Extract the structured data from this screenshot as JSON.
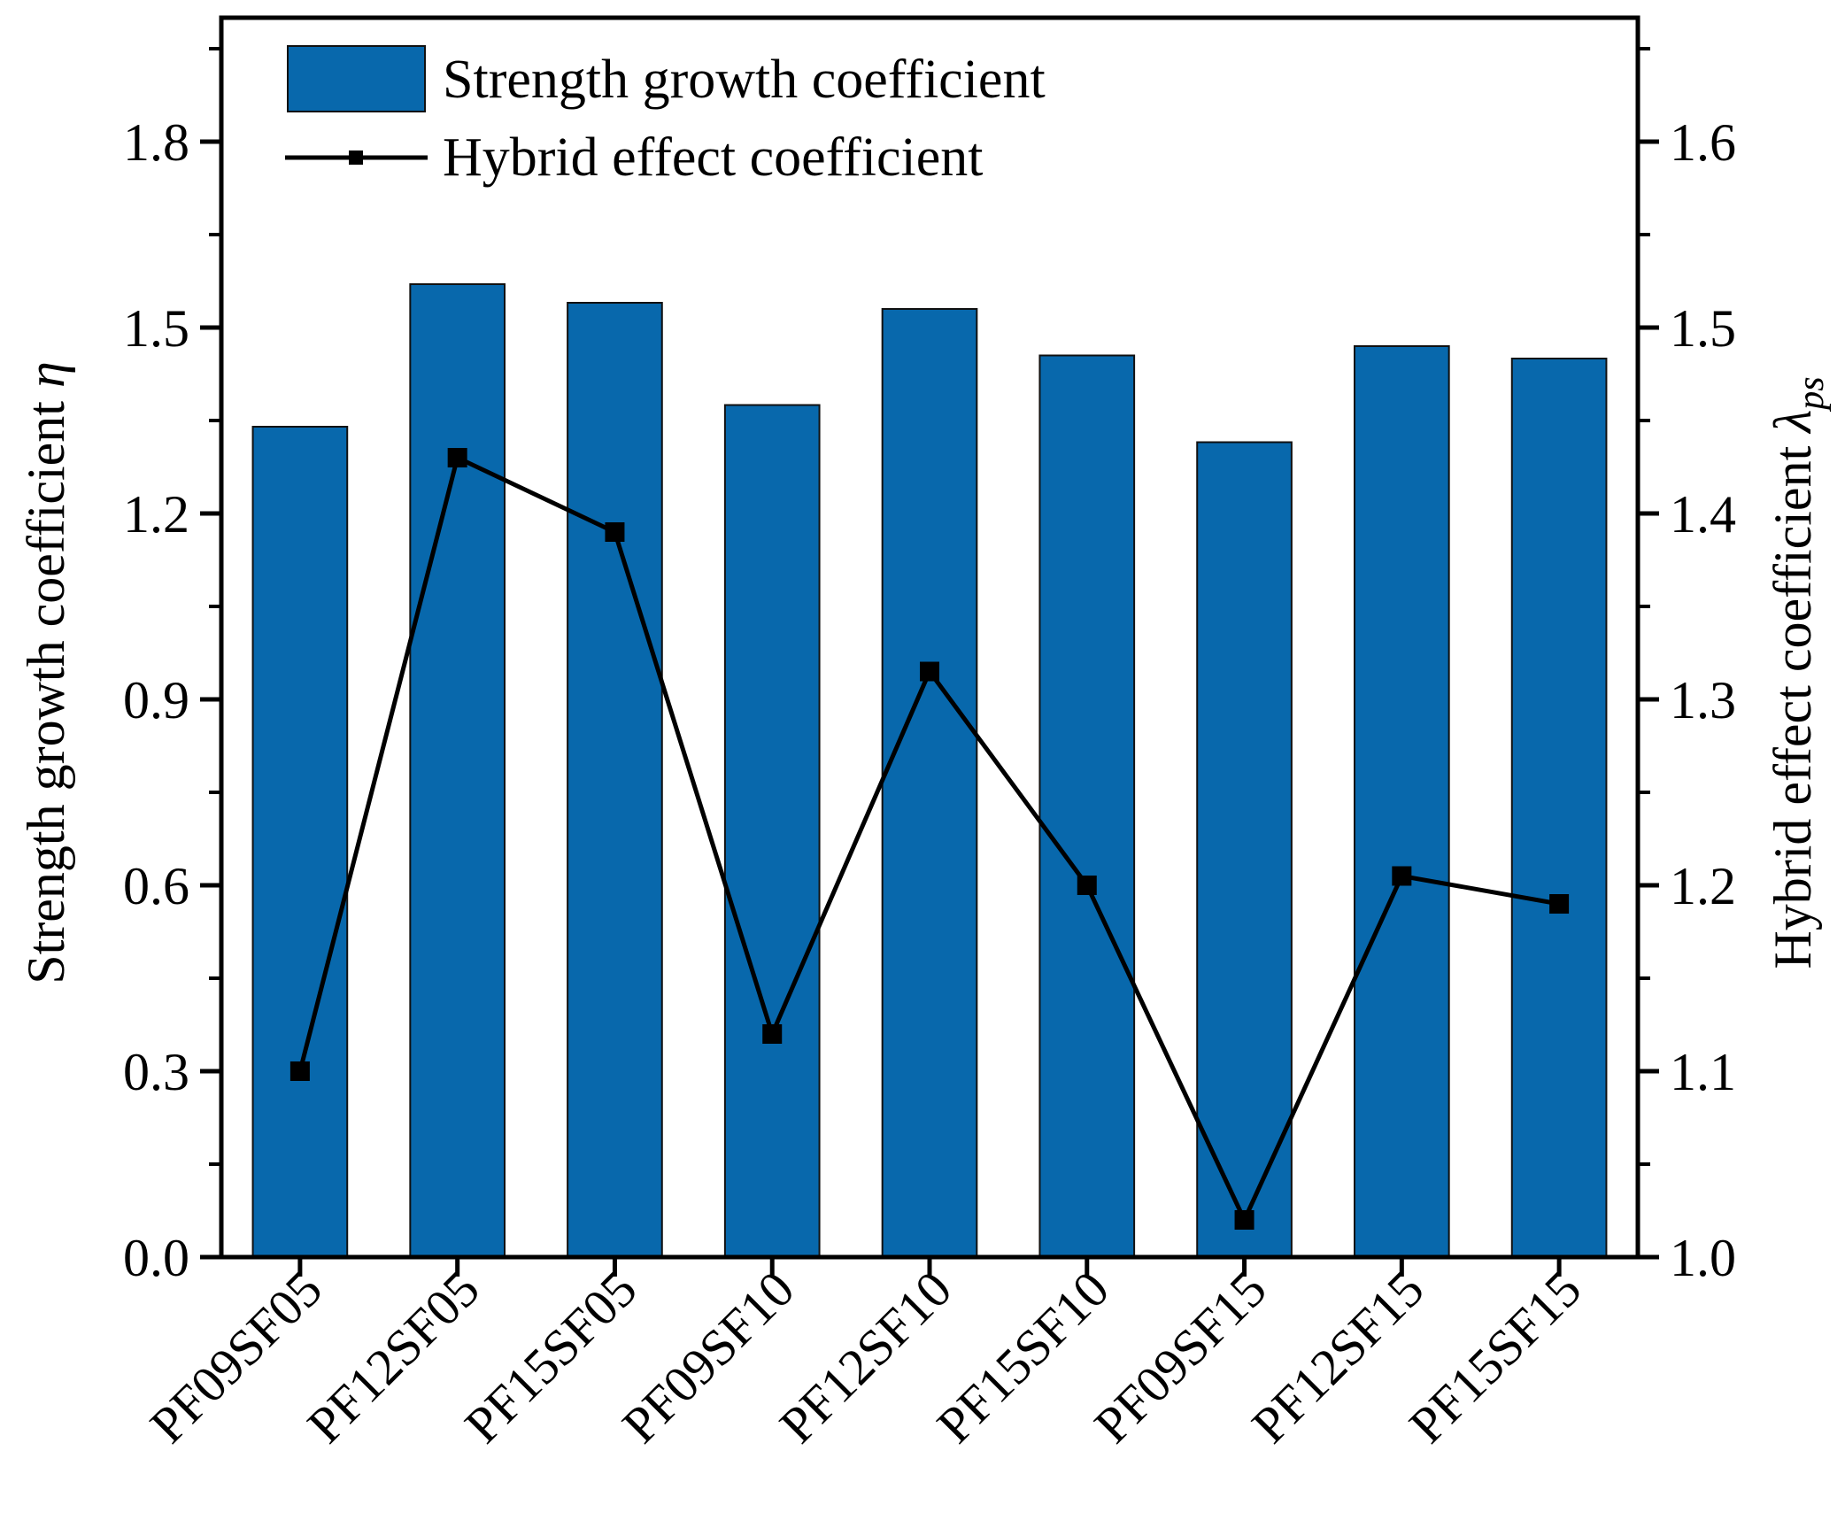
{
  "chart_data": {
    "type": "bar",
    "categories": [
      "PF09SF05",
      "PF12SF05",
      "PF15SF05",
      "PF09SF10",
      "PF12SF10",
      "PF15SF10",
      "PF09SF15",
      "PF12SF15",
      "PF15SF15"
    ],
    "series": [
      {
        "name": "Strength growth coefficient",
        "type": "bar",
        "axis": "left",
        "color": "#0868ac",
        "values": [
          1.34,
          1.57,
          1.54,
          1.375,
          1.53,
          1.455,
          1.315,
          1.47,
          1.45
        ]
      },
      {
        "name": "Hybrid effect coefficient",
        "type": "line",
        "axis": "right",
        "color": "#000000",
        "values": [
          1.1,
          1.43,
          1.39,
          1.12,
          1.315,
          1.2,
          1.02,
          1.205,
          1.19
        ]
      }
    ],
    "y_left": {
      "label": "Strength growth coefficient ",
      "label_symbol": "η",
      "ylim": [
        0.0,
        2.0
      ],
      "ticks": [
        "0.0",
        "0.3",
        "0.6",
        "0.9",
        "1.2",
        "1.5",
        "1.8"
      ],
      "tick_values": [
        0.0,
        0.3,
        0.6,
        0.9,
        1.2,
        1.5,
        1.8
      ],
      "minor_tick_values": [
        0.15,
        0.45,
        0.75,
        1.05,
        1.35,
        1.65,
        1.95
      ]
    },
    "y_right": {
      "label": "Hybrid effect coefficient ",
      "label_symbol": "λ",
      "label_subscript": "ps",
      "ylim": [
        1.0,
        1.6666667
      ],
      "ticks": [
        "1.0",
        "1.1",
        "1.2",
        "1.3",
        "1.4",
        "1.5",
        "1.6"
      ],
      "tick_values": [
        1.0,
        1.1,
        1.2,
        1.3,
        1.4,
        1.5,
        1.6
      ],
      "minor_tick_values": [
        1.05,
        1.15,
        1.25,
        1.35,
        1.45,
        1.55,
        1.65
      ]
    },
    "legend": {
      "position": "top-left",
      "entries": [
        "Strength growth coefficient",
        "Hybrid effect coefficient"
      ]
    }
  }
}
